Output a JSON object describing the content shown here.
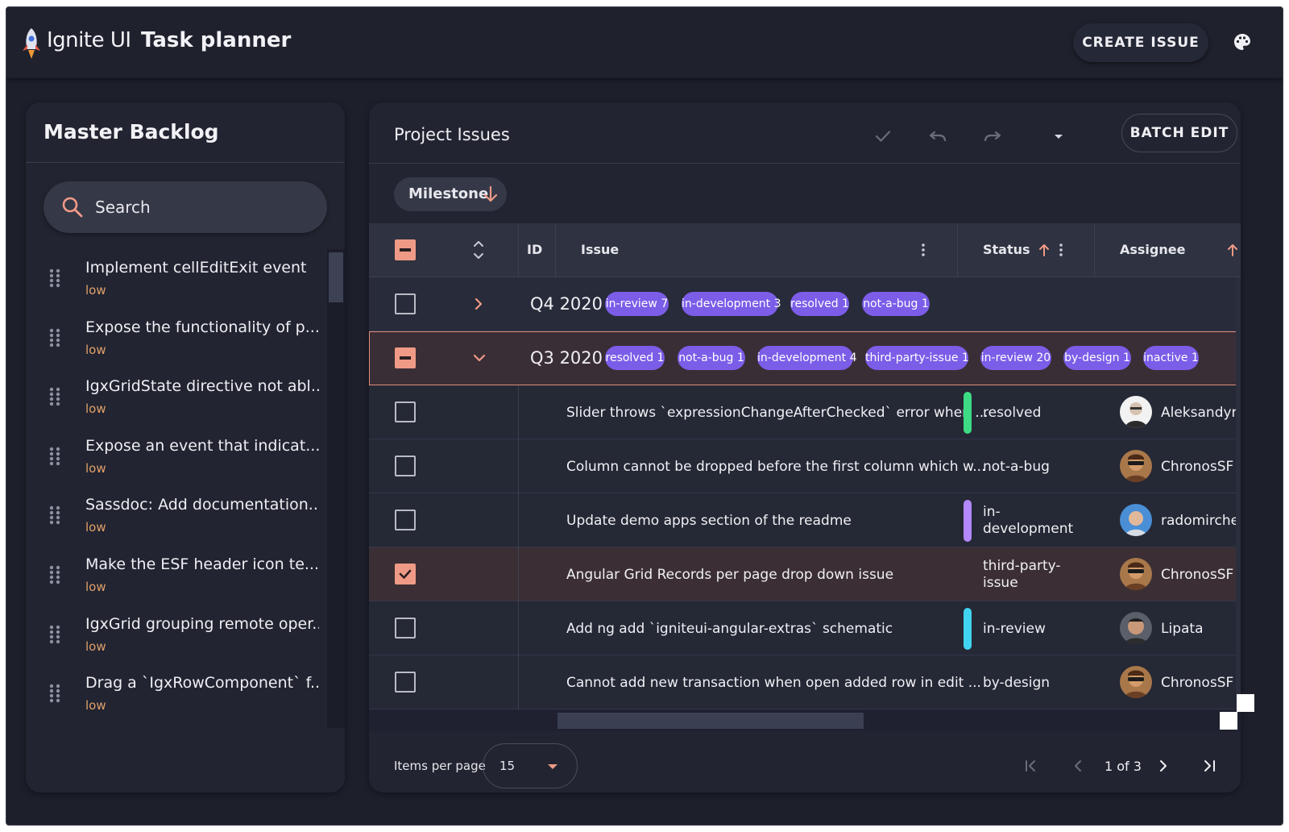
{
  "header": {
    "brand": "Ignite UI",
    "title": "Task planner",
    "create_label": "CREATE ISSUE"
  },
  "sidebar": {
    "title": "Master Backlog",
    "search_placeholder": "Search",
    "items": [
      {
        "title": "Implement cellEditExit event",
        "priority": "low"
      },
      {
        "title": "Expose the functionality of p...",
        "priority": "low"
      },
      {
        "title": "IgxGridState directive not abl...",
        "priority": "low"
      },
      {
        "title": "Expose an event that indicat...",
        "priority": "low"
      },
      {
        "title": "Sassdoc: Add documentation...",
        "priority": "low"
      },
      {
        "title": "Make the ESF header icon te...",
        "priority": "low"
      },
      {
        "title": "IgxGrid grouping remote oper...",
        "priority": "low"
      },
      {
        "title": "Drag a `IgxRowComponent` f...",
        "priority": "low"
      }
    ]
  },
  "main": {
    "title": "Project Issues",
    "batch_edit_label": "BATCH EDIT",
    "group_chip": "Milestone",
    "columns": {
      "id": "ID",
      "issue": "Issue",
      "status": "Status",
      "assignee": "Assignee"
    },
    "groups": [
      {
        "label": "Q4 2020",
        "expanded": false,
        "badges": [
          "in-review 7",
          "in-development 3",
          "resolved 1",
          "not-a-bug 1"
        ]
      },
      {
        "label": "Q3 2020",
        "expanded": true,
        "badges": [
          "resolved 1",
          "not-a-bug 1",
          "in-development 4",
          "third-party-issue 1",
          "in-review 20",
          "by-design 1",
          "inactive 1"
        ]
      }
    ],
    "rows": [
      {
        "issue": "Slider throws `expressionChangeAfterChecked` error when ...",
        "status": "resolved",
        "status_color": "#3ddc84",
        "assignee": "Aleksandyr",
        "checked": false
      },
      {
        "issue": "Column cannot be dropped before the first column which w...",
        "status": "not-a-bug",
        "status_color": "",
        "assignee": "ChronosSF",
        "checked": false
      },
      {
        "issue": "Update demo apps section of the readme",
        "status": "in-development",
        "status_line1": "in-",
        "status_line2": "development",
        "status_color": "#b388ff",
        "assignee": "radomirchev",
        "checked": false
      },
      {
        "issue": "Angular Grid Records per page drop down issue",
        "status": "third-party-issue",
        "status_line1": "third-party-",
        "status_line2": "issue",
        "status_color": "",
        "assignee": "ChronosSF",
        "checked": true
      },
      {
        "issue": "Add ng add `igniteui-angular-extras` schematic",
        "status": "in-review",
        "status_color": "#40d4f0",
        "assignee": "Lipata",
        "checked": false
      },
      {
        "issue": "Cannot add new transaction when open added row in edit ...",
        "status": "by-design",
        "status_color": "",
        "assignee": "ChronosSF",
        "checked": false
      }
    ]
  },
  "pager": {
    "items_per_page_label": "Items per page",
    "per_page": "15",
    "page_text": "1 of 3"
  },
  "colors": {
    "accent": "#ef9a86",
    "badge": "#7b5de8",
    "priority": "#e0a06a",
    "background": "#1d1f2b"
  }
}
